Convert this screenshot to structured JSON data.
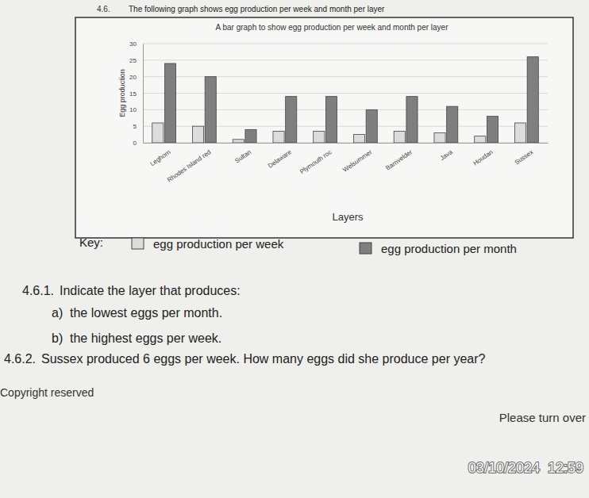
{
  "chart_data": {
    "type": "bar",
    "title": "A bar graph to show egg production per week and month per layer",
    "x_label": "Layers",
    "y_label": "Egg production",
    "categories": [
      "Leghorn",
      "Rhodes Island red",
      "Sultan",
      "Delaware",
      "Plymouth roc",
      "Welsummer",
      "Barnvelder",
      "Java",
      "Houdan",
      "Sussex"
    ],
    "series": [
      {
        "name": "egg production per week",
        "color": "#dcdcdc",
        "values": [
          6,
          5,
          1,
          3.5,
          3.5,
          2.5,
          3.5,
          3,
          2,
          6
        ]
      },
      {
        "name": "egg production per month",
        "color": "#7f7f7f",
        "values": [
          24,
          20,
          4,
          14,
          14,
          10,
          14,
          11,
          8,
          26
        ]
      }
    ],
    "ylim": [
      0,
      30
    ],
    "yticks": [
      0,
      5,
      10,
      15,
      20,
      25,
      30
    ],
    "grid": true,
    "legend": "bottom"
  },
  "document": {
    "heading_number": "4.6.",
    "heading": "The following graph shows egg production per week and month per layer",
    "key_label": "Key:",
    "questions": [
      {
        "number": "4.6.1.",
        "text": "Indicate the layer that produces:",
        "parts": [
          {
            "label": "a)",
            "text": "the lowest eggs per month."
          },
          {
            "label": "b)",
            "text": "the highest eggs per week."
          }
        ]
      },
      {
        "number": "4.6.2.",
        "text": "Sussex produced 6 eggs per week. How many eggs did she produce per year?",
        "parts": []
      }
    ],
    "footer_left": "Copyright reserved",
    "footer_right": "Please turn over",
    "timestamp": "03/10/2024  12:59"
  }
}
